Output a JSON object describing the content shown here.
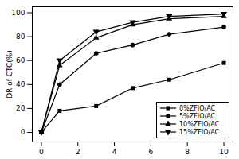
{
  "chart_data": {
    "type": "line",
    "y_label": "DR of CTC(%)",
    "x": [
      0,
      1,
      3,
      5,
      7,
      10
    ],
    "series": [
      {
        "name": "0%ZFIO/AC",
        "color": "#000000",
        "marker": "square",
        "values": [
          0,
          18,
          22,
          37,
          44,
          58
        ]
      },
      {
        "name": "5%ZFIO/AC",
        "color": "#000000",
        "marker": "circle",
        "values": [
          0,
          40,
          66,
          73,
          82,
          88
        ]
      },
      {
        "name": "10%ZFIO/AC",
        "color": "#000000",
        "marker": "triangle",
        "values": [
          0,
          56,
          79,
          90,
          95,
          97
        ]
      },
      {
        "name": "15%ZFIO/AC",
        "color": "#000000",
        "marker": "triangle-down",
        "values": [
          0,
          60,
          84,
          92,
          97,
          99
        ]
      }
    ],
    "xlim": [
      -0.5,
      10.5
    ],
    "xticks": [
      0,
      2,
      4,
      6,
      8,
      10
    ],
    "ylim": [
      -8,
      105
    ],
    "yticks": [
      0,
      20,
      40,
      60,
      80,
      100
    ],
    "legend": "lower right",
    "grid": false
  }
}
